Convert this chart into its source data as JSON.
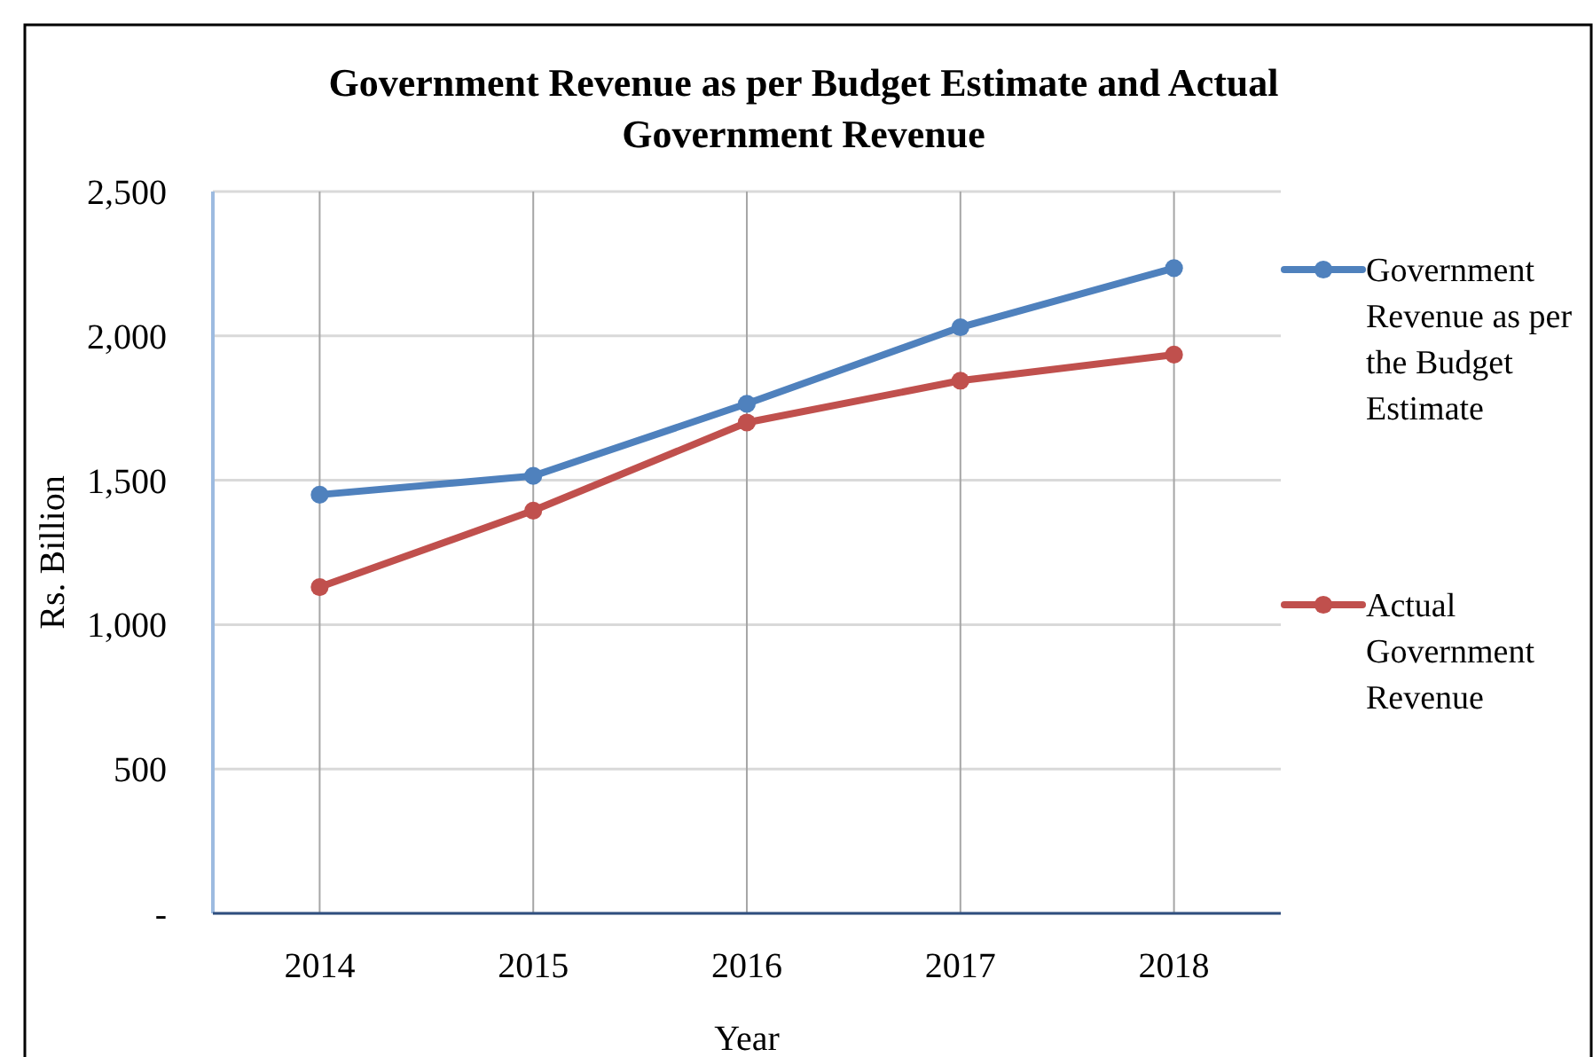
{
  "chart_data": {
    "type": "line",
    "title": "Government Revenue as per Budget Estimate and Actual Government Revenue",
    "xlabel": "Year",
    "ylabel": "Rs. Billion",
    "categories": [
      "2014",
      "2015",
      "2016",
      "2017",
      "2018"
    ],
    "series": [
      {
        "name": "Government Revenue as per the Budget Estimate",
        "color": "#4f81bd",
        "values": [
          1450,
          1515,
          1765,
          2030,
          2235
        ]
      },
      {
        "name": "Actual Government Revenue",
        "color": "#c0504d",
        "values": [
          1130,
          1395,
          1700,
          1845,
          1935
        ]
      }
    ],
    "ylim": [
      0,
      2500
    ],
    "yticks": [
      {
        "value": 0,
        "label": "-"
      },
      500,
      {
        "value": 1000,
        "label": "1,000"
      },
      {
        "value": 1500,
        "label": "1,500"
      },
      {
        "value": 2000,
        "label": "2,000"
      },
      {
        "value": 2500,
        "label": "2,500"
      }
    ],
    "grid": true,
    "legend": "right",
    "marker": "circle",
    "line_style": "solid"
  }
}
